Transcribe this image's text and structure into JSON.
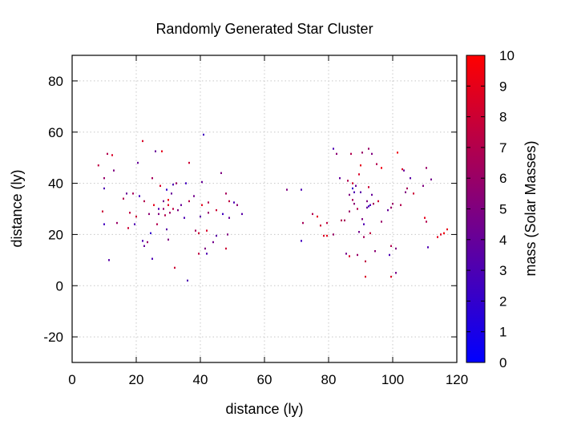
{
  "chart_data": {
    "type": "scatter",
    "title": "Randomly Generated Star Cluster",
    "xlabel": "distance (ly)",
    "ylabel": "distance (ly)",
    "xlim": [
      0,
      120
    ],
    "ylim": [
      -30,
      90
    ],
    "x_ticks": [
      "0",
      "20",
      "40",
      "60",
      "80",
      "100",
      "120"
    ],
    "y_ticks": [
      "-20",
      "0",
      "20",
      "40",
      "60",
      "80"
    ],
    "grid": true,
    "colorbar": {
      "label": "mass (Solar Masses)",
      "range": [
        0,
        10
      ],
      "ticks": [
        "0",
        "1",
        "2",
        "3",
        "4",
        "5",
        "6",
        "7",
        "8",
        "9",
        "10"
      ],
      "color_low": "#0000ff",
      "color_high": "#ff0000"
    },
    "points": [
      [
        8.2,
        47.0,
        7.5
      ],
      [
        10.0,
        38.0,
        3.0
      ],
      [
        10.0,
        42.0,
        6.0
      ],
      [
        9.5,
        29.0,
        8.0
      ],
      [
        10.0,
        24.0,
        2.5
      ],
      [
        11.0,
        51.5,
        7.0
      ],
      [
        12.5,
        51.0,
        8.5
      ],
      [
        11.5,
        10.0,
        3.5
      ],
      [
        13.0,
        45.0,
        5.0
      ],
      [
        14.0,
        24.5,
        6.0
      ],
      [
        16.0,
        34.0,
        7.0
      ],
      [
        17.0,
        36.0,
        4.0
      ],
      [
        17.5,
        22.5,
        8.0
      ],
      [
        18.0,
        28.5,
        7.5
      ],
      [
        19.0,
        36.0,
        6.5
      ],
      [
        19.5,
        24.0,
        3.0
      ],
      [
        20.0,
        27.0,
        8.0
      ],
      [
        20.5,
        48.0,
        4.0
      ],
      [
        21.0,
        35.0,
        2.5
      ],
      [
        22.0,
        17.5,
        3.0
      ],
      [
        22.5,
        15.5,
        4.0
      ],
      [
        22.5,
        33.0,
        7.0
      ],
      [
        22.0,
        56.5,
        8.5
      ],
      [
        23.5,
        17.0,
        6.0
      ],
      [
        24.0,
        28.0,
        5.5
      ],
      [
        24.5,
        20.5,
        2.0
      ],
      [
        25.0,
        10.5,
        3.0
      ],
      [
        25.5,
        31.5,
        9.0
      ],
      [
        25.0,
        42.0,
        6.5
      ],
      [
        26.0,
        52.5,
        4.0
      ],
      [
        26.5,
        24.0,
        7.0
      ],
      [
        27.0,
        28.0,
        5.0
      ],
      [
        27.0,
        30.0,
        3.0
      ],
      [
        27.5,
        39.0,
        8.5
      ],
      [
        28.0,
        52.5,
        9.0
      ],
      [
        28.5,
        30.0,
        6.0
      ],
      [
        28.5,
        33.0,
        4.5
      ],
      [
        29.0,
        27.5,
        7.0
      ],
      [
        29.5,
        22.0,
        3.5
      ],
      [
        29.5,
        37.5,
        2.0
      ],
      [
        30.0,
        18.0,
        5.0
      ],
      [
        30.0,
        31.5,
        8.5
      ],
      [
        30.0,
        33.5,
        9.5
      ],
      [
        30.5,
        28.5,
        6.0
      ],
      [
        31.0,
        36.0,
        4.0
      ],
      [
        31.5,
        30.0,
        7.5
      ],
      [
        31.5,
        39.5,
        3.0
      ],
      [
        32.0,
        7.0,
        8.0
      ],
      [
        32.5,
        40.0,
        6.0
      ],
      [
        33.0,
        29.5,
        5.0
      ],
      [
        34.0,
        31.5,
        4.0
      ],
      [
        35.0,
        26.5,
        3.0
      ],
      [
        35.5,
        40.0,
        2.5
      ],
      [
        36.0,
        2.0,
        3.0
      ],
      [
        36.5,
        33.0,
        7.0
      ],
      [
        36.5,
        48.0,
        8.0
      ],
      [
        38.0,
        35.0,
        4.5
      ],
      [
        38.5,
        21.5,
        6.5
      ],
      [
        39.5,
        12.5,
        7.5
      ],
      [
        39.5,
        20.5,
        8.0
      ],
      [
        40.0,
        27.0,
        3.5
      ],
      [
        40.5,
        31.5,
        9.0
      ],
      [
        40.5,
        40.5,
        4.0
      ],
      [
        41.0,
        59.0,
        2.5
      ],
      [
        41.5,
        14.5,
        5.0
      ],
      [
        42.0,
        12.5,
        3.0
      ],
      [
        42.0,
        21.5,
        8.5
      ],
      [
        42.5,
        28.5,
        6.0
      ],
      [
        42.5,
        32.5,
        7.0
      ],
      [
        44.0,
        17.0,
        4.5
      ],
      [
        45.0,
        19.5,
        3.5
      ],
      [
        45.0,
        29.5,
        8.0
      ],
      [
        46.5,
        44.0,
        5.0
      ],
      [
        47.0,
        28.0,
        2.5
      ],
      [
        48.0,
        36.0,
        6.5
      ],
      [
        48.0,
        14.5,
        8.0
      ],
      [
        48.5,
        20.0,
        5.0
      ],
      [
        49.0,
        26.5,
        4.0
      ],
      [
        49.0,
        33.0,
        7.5
      ],
      [
        50.5,
        32.5,
        3.0
      ],
      [
        51.5,
        31.5,
        5.5
      ],
      [
        53.0,
        28.0,
        3.5
      ],
      [
        67.0,
        37.5,
        5.0
      ],
      [
        71.5,
        37.5,
        3.0
      ],
      [
        71.5,
        17.5,
        2.5
      ],
      [
        72.0,
        24.5,
        6.5
      ],
      [
        75.0,
        28.0,
        7.0
      ],
      [
        76.5,
        27.0,
        9.0
      ],
      [
        77.5,
        23.5,
        8.0
      ],
      [
        78.5,
        19.5,
        8.5
      ],
      [
        79.5,
        19.5,
        9.0
      ],
      [
        79.5,
        24.5,
        7.5
      ],
      [
        81.5,
        20.0,
        6.0
      ],
      [
        81.5,
        53.5,
        3.0
      ],
      [
        82.5,
        51.5,
        5.5
      ],
      [
        83.5,
        42.0,
        4.0
      ],
      [
        84.0,
        25.5,
        7.0
      ],
      [
        85.0,
        25.5,
        6.5
      ],
      [
        85.5,
        12.5,
        4.5
      ],
      [
        86.0,
        41.0,
        7.0
      ],
      [
        86.5,
        11.5,
        8.5
      ],
      [
        86.5,
        29.0,
        6.0
      ],
      [
        86.5,
        35.5,
        5.0
      ],
      [
        87.0,
        51.5,
        7.0
      ],
      [
        87.5,
        40.0,
        8.0
      ],
      [
        87.5,
        33.5,
        6.5
      ],
      [
        87.5,
        38.0,
        2.0
      ],
      [
        88.0,
        36.5,
        3.0
      ],
      [
        88.5,
        39.0,
        4.0
      ],
      [
        88.0,
        32.0,
        5.5
      ],
      [
        89.0,
        30.0,
        7.0
      ],
      [
        89.0,
        12.0,
        6.0
      ],
      [
        89.5,
        21.0,
        4.5
      ],
      [
        89.5,
        43.5,
        8.5
      ],
      [
        90.0,
        47.0,
        9.0
      ],
      [
        90.0,
        36.5,
        3.5
      ],
      [
        90.5,
        52.0,
        6.0
      ],
      [
        90.5,
        26.0,
        5.0
      ],
      [
        91.0,
        24.0,
        3.0
      ],
      [
        91.0,
        19.0,
        6.5
      ],
      [
        91.5,
        9.5,
        7.5
      ],
      [
        91.5,
        3.5,
        8.5
      ],
      [
        92.0,
        30.5,
        4.0
      ],
      [
        92.0,
        33.0,
        5.0
      ],
      [
        92.5,
        31.0,
        2.5
      ],
      [
        92.5,
        38.5,
        8.0
      ],
      [
        92.5,
        53.5,
        6.0
      ],
      [
        93.0,
        31.5,
        3.0
      ],
      [
        93.5,
        35.5,
        4.0
      ],
      [
        93.0,
        20.5,
        7.5
      ],
      [
        93.5,
        51.5,
        5.0
      ],
      [
        94.0,
        32.0,
        6.5
      ],
      [
        94.5,
        13.5,
        5.5
      ],
      [
        95.0,
        47.5,
        7.0
      ],
      [
        95.5,
        33.0,
        8.0
      ],
      [
        96.5,
        46.0,
        9.5
      ],
      [
        96.5,
        25.0,
        6.0
      ],
      [
        98.5,
        29.5,
        4.0
      ],
      [
        99.0,
        12.0,
        3.0
      ],
      [
        99.5,
        30.5,
        6.0
      ],
      [
        99.5,
        15.5,
        7.0
      ],
      [
        99.5,
        3.5,
        8.5
      ],
      [
        100.0,
        32.0,
        6.0
      ],
      [
        101.0,
        5.0,
        4.5
      ],
      [
        101.0,
        14.5,
        5.0
      ],
      [
        101.5,
        52.0,
        9.5
      ],
      [
        102.5,
        31.5,
        7.0
      ],
      [
        103.0,
        45.5,
        8.5
      ],
      [
        103.5,
        45.0,
        4.0
      ],
      [
        104.0,
        36.5,
        5.0
      ],
      [
        104.5,
        38.0,
        6.5
      ],
      [
        105.5,
        42.0,
        3.5
      ],
      [
        106.5,
        36.0,
        8.0
      ],
      [
        109.5,
        39.0,
        5.0
      ],
      [
        110.5,
        46.0,
        6.0
      ],
      [
        110.0,
        26.5,
        9.0
      ],
      [
        110.5,
        25.0,
        7.0
      ],
      [
        111.0,
        15.0,
        3.0
      ],
      [
        112.0,
        41.5,
        4.5
      ],
      [
        114.0,
        19.0,
        9.0
      ],
      [
        115.0,
        20.0,
        8.5
      ],
      [
        116.0,
        20.5,
        9.5
      ],
      [
        117.0,
        22.0,
        9.0
      ]
    ]
  }
}
